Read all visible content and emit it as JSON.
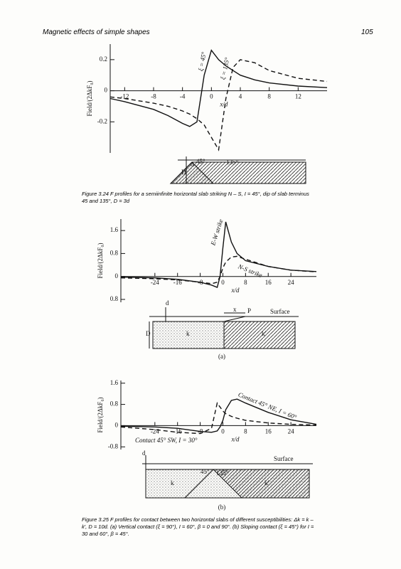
{
  "header": {
    "title": "Magnetic effects of simple shapes",
    "page": "105"
  },
  "chart_data": [
    {
      "type": "line",
      "ylabel": "Field/(2ΔkF₀)",
      "xlabel": "x/d",
      "x": [
        -14,
        -12,
        -8,
        -6,
        -4,
        -3,
        -2,
        -1,
        0,
        1,
        2,
        3,
        4,
        6,
        8,
        12,
        16
      ],
      "xlim": [
        -14,
        16
      ],
      "ylim": [
        -0.4,
        0.3
      ],
      "xticks": [
        -12,
        -8,
        -4,
        0,
        4,
        8,
        12
      ],
      "yticks": [
        -0.2,
        0,
        0.2
      ],
      "series": [
        {
          "name": "ξ = 45°",
          "color": "#111111",
          "linestyle": "solid",
          "values": [
            -0.05,
            -0.07,
            -0.12,
            -0.16,
            -0.21,
            -0.23,
            -0.2,
            0.1,
            0.26,
            0.2,
            0.16,
            0.13,
            0.1,
            0.07,
            0.05,
            0.03,
            0.02
          ]
        },
        {
          "name": "ξ = 135°",
          "color": "#111111",
          "linestyle": "dashed",
          "values": [
            -0.04,
            -0.05,
            -0.08,
            -0.1,
            -0.13,
            -0.15,
            -0.18,
            -0.22,
            -0.3,
            -0.38,
            -0.05,
            0.15,
            0.2,
            0.18,
            0.13,
            0.08,
            0.06
          ]
        }
      ]
    },
    {
      "type": "line",
      "ylabel": "Field/(2ΔkF₀)",
      "xlabel": "x/d",
      "x": [
        -36,
        -24,
        -16,
        -8,
        -4,
        -2,
        -1,
        0,
        1,
        3,
        5,
        8,
        16,
        24,
        33
      ],
      "xlim": [
        -36,
        33
      ],
      "ylim": [
        -0.9,
        2.0
      ],
      "xticks": [
        -24,
        -16,
        -8,
        0,
        8,
        16,
        24
      ],
      "yticks": [
        {
          "value": -0.8,
          "label": "0.8"
        },
        0,
        0.8,
        1.6
      ],
      "series": [
        {
          "name": "E-W strike",
          "color": "#111111",
          "linestyle": "solid",
          "values": [
            -0.02,
            -0.05,
            -0.1,
            -0.2,
            -0.3,
            -0.38,
            0,
            1,
            1.9,
            1.2,
            0.8,
            0.55,
            0.35,
            0.22,
            0.17
          ]
        },
        {
          "name": "N-S strike",
          "color": "#111111",
          "linestyle": "dashed",
          "values": [
            -0.05,
            -0.08,
            -0.12,
            -0.2,
            -0.25,
            -0.2,
            0,
            0.3,
            0.5,
            0.68,
            0.7,
            0.6,
            0.35,
            0.22,
            0.16
          ]
        }
      ]
    },
    {
      "type": "line",
      "ylabel": "Field/(2ΔkF₀)",
      "xlabel": "x/d",
      "x": [
        -36,
        -24,
        -16,
        -8,
        -4,
        -2,
        -1,
        0,
        1,
        3,
        5,
        8,
        16,
        24,
        33
      ],
      "xlim": [
        -36,
        33
      ],
      "ylim": [
        -0.9,
        1.7
      ],
      "xticks": [
        -24,
        -16,
        -8,
        0,
        8,
        16,
        24
      ],
      "yticks": [
        -0.8,
        0,
        0.8,
        1.6
      ],
      "series": [
        {
          "name": "Contact 45° NE, I = 60°",
          "color": "#111111",
          "linestyle": "solid",
          "values": [
            -0.02,
            -0.05,
            -0.1,
            -0.22,
            -0.25,
            -0.2,
            -0.05,
            0.2,
            0.6,
            0.95,
            1.0,
            0.85,
            0.5,
            0.22,
            0.05
          ]
        },
        {
          "name": "Contact 45° SW, I = 30°",
          "color": "#111111",
          "linestyle": "dashed",
          "values": [
            -0.05,
            -0.15,
            -0.25,
            -0.3,
            -0.1,
            0.85,
            0.7,
            0.55,
            0.45,
            0.35,
            0.28,
            0.2,
            0.1,
            0.05,
            0.02
          ]
        }
      ]
    }
  ],
  "diagrams": [
    {
      "labels": [
        "d",
        "D",
        "45°",
        "135°"
      ]
    },
    {
      "labels": [
        "d",
        "D",
        "x",
        "P",
        "Surface",
        "k",
        "k′"
      ],
      "panel": "(a)"
    },
    {
      "labels": [
        "d",
        "Surface",
        "45°",
        "135°",
        "k",
        "k′"
      ],
      "panel": "(b)"
    }
  ],
  "captions": [
    "Figure 3.24  F profiles for a semiinfinite horizontal slab striking N – S, I = 45°, dip of slab terminus 45 and 135°, D = 3d",
    "Figure 3.25  F profiles for contact between two horizontal slabs of different susceptibilities: Δk = k – k′, D = 10d. (a) Vertical contact (ξ = 90°), I = 60°, β = 0 and 90°. (b) Sloping contact (ξ = 45°) for I = 30 and 60°, β = 45°."
  ]
}
